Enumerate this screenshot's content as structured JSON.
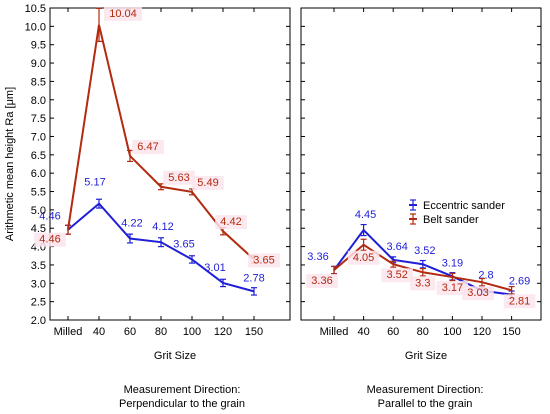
{
  "chart_data": [
    {
      "type": "line",
      "panel": "left",
      "ylabel": "Arithmetic mean height Ra [μm]",
      "xlabel": "Grit Size",
      "caption": [
        "Measurement Direction:",
        "Perpendicular to the grain"
      ],
      "categories": [
        "Milled",
        "40",
        "60",
        "80",
        "100",
        "120",
        "150"
      ],
      "ylim": [
        2.0,
        10.5
      ],
      "yticks": [
        "2.0",
        "2.5",
        "3.0",
        "3.5",
        "4.0",
        "4.5",
        "5.0",
        "5.5",
        "6.0",
        "6.5",
        "7.0",
        "7.5",
        "8.0",
        "8.5",
        "9.0",
        "9.5",
        "10.0",
        "10.5"
      ],
      "grid": false,
      "series": [
        {
          "name": "Eccentric sander",
          "color": "#1f1fd6",
          "values": [
            4.46,
            5.17,
            4.22,
            4.12,
            3.65,
            3.01,
            2.78
          ],
          "error": [
            0.12,
            0.12,
            0.12,
            0.12,
            0.1,
            0.1,
            0.1
          ],
          "labels": [
            "4.46",
            "5.17",
            "4.22",
            "4.12",
            "3.65",
            "3.01",
            "2.78"
          ]
        },
        {
          "name": "Belt sander",
          "color": "#b22a0f",
          "values": [
            4.46,
            10.04,
            6.47,
            5.63,
            5.49,
            4.42,
            3.65
          ],
          "error": [
            0.12,
            0.45,
            0.15,
            0.08,
            0.08,
            0.1,
            0.1
          ],
          "labels": [
            "4.46",
            "10.04",
            "6.47",
            "5.63",
            "5.49",
            "4.42",
            "3.65"
          ]
        }
      ]
    },
    {
      "type": "line",
      "panel": "right",
      "xlabel": "Grit Size",
      "caption": [
        "Measurement Direction:",
        "Parallel to the grain"
      ],
      "categories": [
        "Milled",
        "40",
        "60",
        "80",
        "100",
        "120",
        "150"
      ],
      "ylim": [
        2.0,
        10.5
      ],
      "grid": false,
      "legend": "center-right",
      "series": [
        {
          "name": "Eccentric sander",
          "color": "#1f1fd6",
          "values": [
            3.36,
            4.45,
            3.64,
            3.52,
            3.19,
            2.8,
            2.69
          ],
          "error": [
            0.1,
            0.15,
            0.08,
            0.1,
            0.1,
            0.1,
            0.1
          ],
          "labels": [
            "3.36",
            "4.45",
            "3.64",
            "3.52",
            "3.19",
            "2.8",
            "2.69"
          ]
        },
        {
          "name": "Belt sander",
          "color": "#b22a0f",
          "values": [
            3.36,
            4.05,
            3.52,
            3.3,
            3.17,
            3.03,
            2.81
          ],
          "error": [
            0.1,
            0.15,
            0.08,
            0.1,
            0.1,
            0.1,
            0.1
          ],
          "labels": [
            "3.36",
            "4.05",
            "3.52",
            "3.3",
            "3.17",
            "3.03",
            "2.81"
          ]
        }
      ]
    }
  ]
}
